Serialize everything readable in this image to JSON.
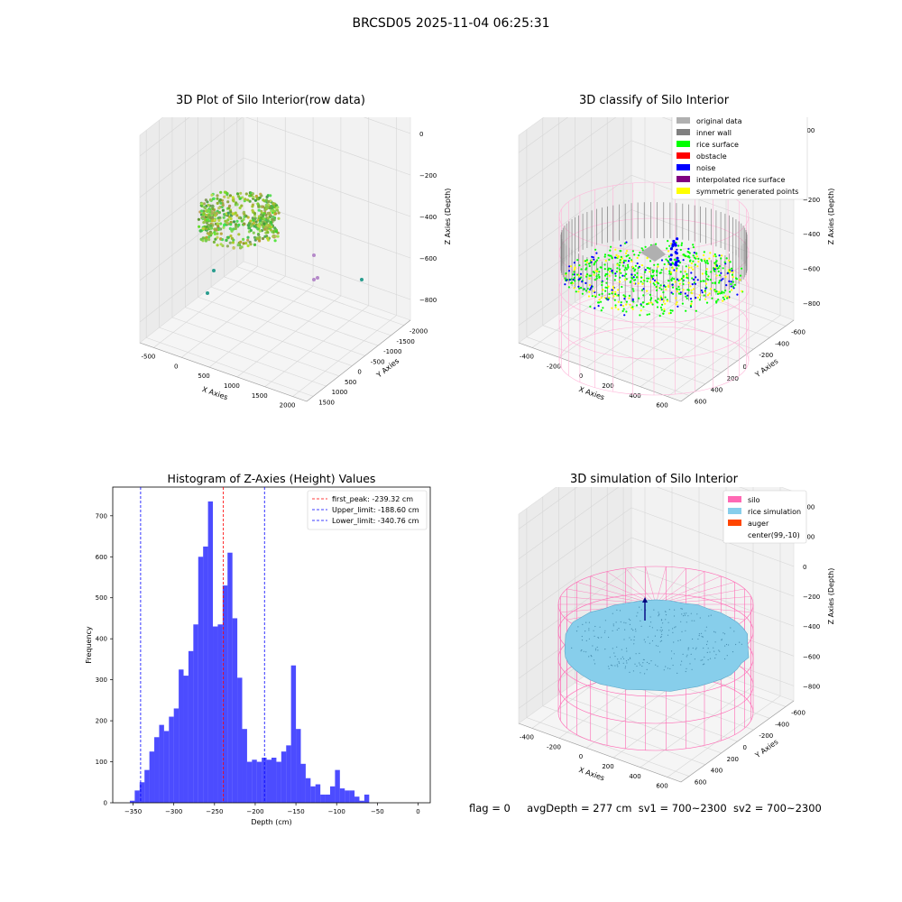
{
  "suptitle": "BRCSD05 2025-11-04 06:25:31",
  "panels": {
    "raw": {
      "title": "3D Plot of Silo Interior(row data)",
      "xlabel": "X Axies",
      "ylabel": "Y Axies",
      "zlabel": "Z Axies (Depth)",
      "xticks": [
        "-500",
        "0",
        "500",
        "1000",
        "1500",
        "2000"
      ],
      "yticks": [
        "-2000",
        "-1500",
        "-1000",
        "-500",
        "0",
        "500",
        "1000",
        "1500"
      ],
      "zticks": [
        "0",
        "−200",
        "−400",
        "−600",
        "−800"
      ]
    },
    "classify": {
      "title": "3D classify of Silo Interior",
      "xlabel": "X Axies",
      "ylabel": "Y Axies",
      "zlabel": "Z Axies (Depth)",
      "xticks": [
        "-400",
        "-200",
        "0",
        "200",
        "400",
        "600"
      ],
      "yticks": [
        "-600",
        "-400",
        "-200",
        "0",
        "200",
        "400",
        "600"
      ],
      "zticks": [
        "200",
        "0",
        "−200",
        "−400",
        "−600",
        "−800"
      ],
      "legend": [
        {
          "label": "original data",
          "color": "#b0b0b0"
        },
        {
          "label": "inner wall",
          "color": "#808080"
        },
        {
          "label": "rice surface",
          "color": "#00ff00"
        },
        {
          "label": "obstacle",
          "color": "#ff0000"
        },
        {
          "label": "noise",
          "color": "#0000ff"
        },
        {
          "label": "interpolated rice surface",
          "color": "#800080"
        },
        {
          "label": "symmetric generated points",
          "color": "#ffff00"
        }
      ]
    },
    "simulation": {
      "title": "3D simulation of Silo Interior",
      "xlabel": "X Axies",
      "ylabel": "Y Axies",
      "zlabel": "Z Axies (Depth)",
      "xticks": [
        "-400",
        "-200",
        "0",
        "200",
        "400",
        "600"
      ],
      "yticks": [
        "-600",
        "-400",
        "-200",
        "0",
        "200",
        "400",
        "600"
      ],
      "zticks": [
        "400",
        "200",
        "0",
        "−200",
        "−400",
        "−600",
        "−800"
      ],
      "legend": [
        {
          "label": "silo",
          "color": "#ff69b4"
        },
        {
          "label": "rice simulation",
          "color": "#87ceeb"
        },
        {
          "label": "auger",
          "color": "#ff4500"
        },
        {
          "label": "center(99,-10)",
          "color": "#ffffff"
        }
      ]
    }
  },
  "status": {
    "flag": "flag = 0",
    "avg_depth": "avgDepth = 277 cm",
    "sv1": "sv1 = 700~2300",
    "sv2": "sv2 = 700~2300"
  },
  "chart_data": [
    {
      "type": "histogram",
      "title": "Histogram of Z-Axies (Height) Values",
      "xlabel": "Depth (cm)",
      "ylabel": "Frequency",
      "bar_color": "#0000ff",
      "bin_width": 6,
      "bin_start": -354,
      "counts": [
        5,
        30,
        50,
        80,
        125,
        160,
        190,
        175,
        210,
        230,
        325,
        310,
        370,
        435,
        600,
        625,
        735,
        430,
        435,
        530,
        610,
        450,
        305,
        180,
        100,
        105,
        100,
        110,
        105,
        110,
        100,
        125,
        140,
        335,
        180,
        95,
        60,
        40,
        45,
        20,
        20,
        40,
        80,
        35,
        30,
        30,
        15,
        5,
        20
      ],
      "xticks": [
        "−350",
        "−300",
        "−250",
        "−200",
        "−150",
        "−100",
        "−50",
        "0"
      ],
      "yticks": [
        "0",
        "100",
        "200",
        "300",
        "400",
        "500",
        "600",
        "700"
      ],
      "xlim": [
        -375,
        15
      ],
      "ylim": [
        0,
        770
      ],
      "lines": [
        {
          "label": "first_peak: -239.32 cm",
          "x": -239.32,
          "color": "#ff0000"
        },
        {
          "label": "Upper_limit: -188.60 cm",
          "x": -188.6,
          "color": "#0000ff"
        },
        {
          "label": "Lower_limit: -340.76 cm",
          "x": -340.76,
          "color": "#0000ff"
        }
      ]
    }
  ]
}
